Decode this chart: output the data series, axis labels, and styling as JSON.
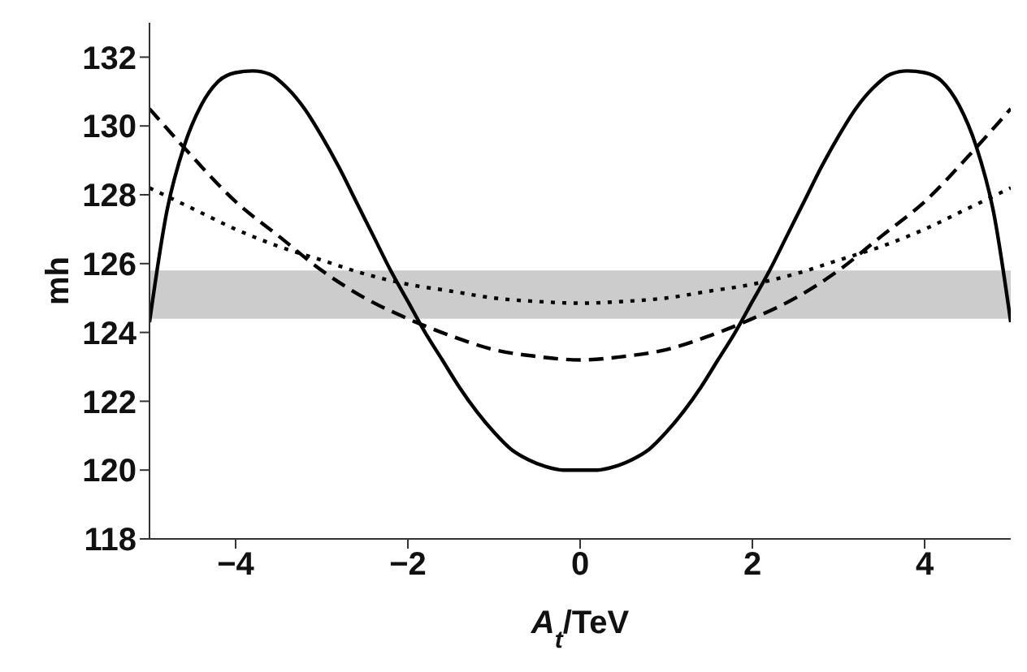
{
  "chart_data": {
    "type": "line",
    "xlabel": "A$_{t}$/TeV",
    "ylabel": "mh",
    "xlim": [
      -5,
      5
    ],
    "xticks": [
      -4,
      -2,
      0,
      2,
      4
    ],
    "ylim": [
      118,
      133
    ],
    "yticks": [
      118,
      120,
      122,
      124,
      126,
      128,
      130,
      132
    ],
    "grid": false,
    "marker": "none",
    "bands": [
      {
        "axis": "y",
        "from": 124.4,
        "to": 125.8,
        "color": "#cccccc"
      }
    ],
    "series": [
      {
        "color": "#000000",
        "line_style": "solid",
        "x": [
          -5,
          -4.8,
          -4.6,
          -4.4,
          -4.2,
          -4,
          -3.8,
          -3.6,
          -3.4,
          -3.2,
          -3,
          -2.8,
          -2.6,
          -2.4,
          -2.2,
          -2,
          -1.8,
          -1.6,
          -1.4,
          -1.2,
          -1,
          -0.8,
          -0.6,
          -0.4,
          -0.2,
          0,
          0.2,
          0.4,
          0.6,
          0.8,
          1,
          1.2,
          1.4,
          1.6,
          1.8,
          2,
          2.2,
          2.4,
          2.6,
          2.8,
          3,
          3.2,
          3.4,
          3.6,
          3.8,
          4,
          4.2,
          4.4,
          4.6,
          4.8,
          5
        ],
        "values": [
          124.3,
          127.5,
          129.4,
          130.6,
          131.3,
          131.55,
          131.6,
          131.5,
          131.1,
          130.5,
          129.7,
          128.8,
          127.8,
          126.8,
          125.8,
          124.9,
          124,
          123.2,
          122.4,
          121.7,
          121.1,
          120.6,
          120.3,
          120.1,
          120,
          120,
          120,
          120.1,
          120.3,
          120.6,
          121.1,
          121.7,
          122.4,
          123.2,
          124,
          124.9,
          125.8,
          126.8,
          127.8,
          128.8,
          129.7,
          130.5,
          131.1,
          131.5,
          131.6,
          131.55,
          131.3,
          130.6,
          129.4,
          127.5,
          124.3
        ]
      },
      {
        "color": "#000000",
        "line_style": "dashed",
        "x": [
          -5,
          -4.5,
          -4,
          -3.5,
          -3,
          -2.5,
          -2,
          -1.5,
          -1,
          -0.5,
          0,
          0.5,
          1,
          1.5,
          2,
          2.5,
          3,
          3.5,
          4,
          4.5,
          5
        ],
        "values": [
          130.5,
          129.1,
          127.8,
          126.8,
          125.8,
          125,
          124.4,
          123.9,
          123.5,
          123.3,
          123.2,
          123.3,
          123.5,
          123.9,
          124.4,
          125,
          125.8,
          126.8,
          127.8,
          129.1,
          130.5
        ]
      },
      {
        "color": "#000000",
        "line_style": "dotted",
        "x": [
          -5,
          -4.5,
          -4,
          -3.5,
          -3,
          -2.5,
          -2,
          -1.5,
          -1,
          -0.5,
          0,
          0.5,
          1,
          1.5,
          2,
          2.5,
          3,
          3.5,
          4,
          4.5,
          5
        ],
        "values": [
          128.2,
          127.6,
          127,
          126.5,
          126.1,
          125.7,
          125.4,
          125.2,
          125,
          124.9,
          124.85,
          124.9,
          125,
          125.2,
          125.4,
          125.7,
          126.1,
          126.5,
          127,
          127.6,
          128.2
        ]
      }
    ]
  }
}
